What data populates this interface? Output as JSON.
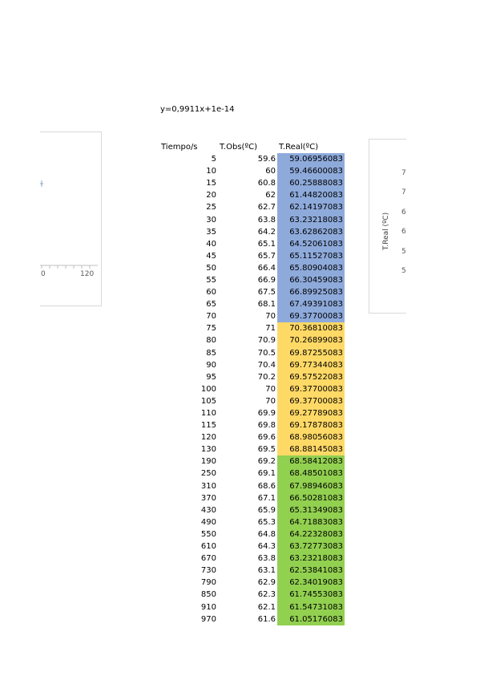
{
  "equation": "y=0,9911x+1e-14",
  "colors": {
    "blue": "#8eaadb",
    "yellow": "#ffd966",
    "green": "#92d050",
    "chart_border": "#d9d9d9"
  },
  "table": {
    "headers": [
      "Tiempo/s",
      "T.Obs(ºC)",
      "T.Real(ºC)"
    ],
    "rows": [
      {
        "t": "5",
        "obs": "59.6",
        "real": "59.06956083",
        "color": "blue"
      },
      {
        "t": "10",
        "obs": "60",
        "real": "59.46600083",
        "color": "blue"
      },
      {
        "t": "15",
        "obs": "60.8",
        "real": "60.25888083",
        "color": "blue"
      },
      {
        "t": "20",
        "obs": "62",
        "real": "61.44820083",
        "color": "blue"
      },
      {
        "t": "25",
        "obs": "62.7",
        "real": "62.14197083",
        "color": "blue"
      },
      {
        "t": "30",
        "obs": "63.8",
        "real": "63.23218083",
        "color": "blue"
      },
      {
        "t": "35",
        "obs": "64.2",
        "real": "63.62862083",
        "color": "blue"
      },
      {
        "t": "40",
        "obs": "65.1",
        "real": "64.52061083",
        "color": "blue"
      },
      {
        "t": "45",
        "obs": "65.7",
        "real": "65.11527083",
        "color": "blue"
      },
      {
        "t": "50",
        "obs": "66.4",
        "real": "65.80904083",
        "color": "blue"
      },
      {
        "t": "55",
        "obs": "66.9",
        "real": "66.30459083",
        "color": "blue"
      },
      {
        "t": "60",
        "obs": "67.5",
        "real": "66.89925083",
        "color": "blue"
      },
      {
        "t": "65",
        "obs": "68.1",
        "real": "67.49391083",
        "color": "blue"
      },
      {
        "t": "70",
        "obs": "70",
        "real": "69.37700083",
        "color": "blue"
      },
      {
        "t": "75",
        "obs": "71",
        "real": "70.36810083",
        "color": "yellow"
      },
      {
        "t": "80",
        "obs": "70.9",
        "real": "70.26899083",
        "color": "yellow"
      },
      {
        "t": "85",
        "obs": "70.5",
        "real": "69.87255083",
        "color": "yellow"
      },
      {
        "t": "90",
        "obs": "70.4",
        "real": "69.77344083",
        "color": "yellow"
      },
      {
        "t": "95",
        "obs": "70.2",
        "real": "69.57522083",
        "color": "yellow"
      },
      {
        "t": "100",
        "obs": "70",
        "real": "69.37700083",
        "color": "yellow"
      },
      {
        "t": "105",
        "obs": "70",
        "real": "69.37700083",
        "color": "yellow"
      },
      {
        "t": "110",
        "obs": "69.9",
        "real": "69.27789083",
        "color": "yellow"
      },
      {
        "t": "115",
        "obs": "69.8",
        "real": "69.17878083",
        "color": "yellow"
      },
      {
        "t": "120",
        "obs": "69.6",
        "real": "68.98056083",
        "color": "yellow"
      },
      {
        "t": "130",
        "obs": "69.5",
        "real": "68.88145083",
        "color": "yellow"
      },
      {
        "t": "190",
        "obs": "69.2",
        "real": "68.58412083",
        "color": "green"
      },
      {
        "t": "250",
        "obs": "69.1",
        "real": "68.48501083",
        "color": "green"
      },
      {
        "t": "310",
        "obs": "68.6",
        "real": "67.98946083",
        "color": "green"
      },
      {
        "t": "370",
        "obs": "67.1",
        "real": "66.50281083",
        "color": "green"
      },
      {
        "t": "430",
        "obs": "65.9",
        "real": "65.31349083",
        "color": "green"
      },
      {
        "t": "490",
        "obs": "65.3",
        "real": "64.71883083",
        "color": "green"
      },
      {
        "t": "550",
        "obs": "64.8",
        "real": "64.22328083",
        "color": "green"
      },
      {
        "t": "610",
        "obs": "64.3",
        "real": "63.72773083",
        "color": "green"
      },
      {
        "t": "670",
        "obs": "63.8",
        "real": "63.23218083",
        "color": "green"
      },
      {
        "t": "730",
        "obs": "63.1",
        "real": "62.53841083",
        "color": "green"
      },
      {
        "t": "790",
        "obs": "62.9",
        "real": "62.34019083",
        "color": "green"
      },
      {
        "t": "850",
        "obs": "62.3",
        "real": "61.74553083",
        "color": "green"
      },
      {
        "t": "910",
        "obs": "62.1",
        "real": "61.54731083",
        "color": "green"
      },
      {
        "t": "970",
        "obs": "61.6",
        "real": "61.05176083",
        "color": "green"
      }
    ]
  },
  "left_chart": {
    "x_ticks": [
      "0",
      "120"
    ]
  },
  "right_chart": {
    "ylabel": "T.Real (ºC)",
    "y_ticks": [
      "7",
      "7",
      "6",
      "6",
      "5",
      "5"
    ]
  }
}
